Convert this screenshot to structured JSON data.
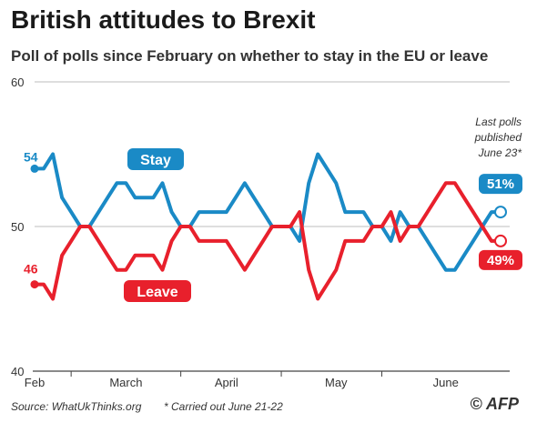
{
  "header": {
    "title": "British attitudes to Brexit",
    "subtitle": "Poll of polls since February on whether to stay in the EU or leave"
  },
  "footer": {
    "source": "Source: WhatUkThinks.org",
    "note": "* Carried out June 21-22",
    "credit": "© AFP"
  },
  "colors": {
    "stay": "#1a8ac6",
    "leave": "#e8202c",
    "grid": "#bdbdbd",
    "axis": "#444444"
  },
  "chart_data": {
    "type": "line",
    "title": "British attitudes to Brexit",
    "subtitle": "Poll of polls since February on whether to stay in the EU or leave",
    "x": [
      0,
      1,
      2,
      3,
      4,
      5,
      6,
      7,
      8,
      9,
      10,
      11,
      12,
      13,
      14,
      15,
      16,
      17,
      18,
      19,
      20,
      21,
      22,
      23,
      24,
      25,
      26,
      27,
      28,
      29,
      30,
      31,
      32,
      33,
      34,
      35,
      36,
      37,
      38,
      39,
      40,
      41,
      42,
      43,
      44,
      45,
      46,
      47,
      48,
      49,
      50,
      51
    ],
    "x_ticks": [
      {
        "pos": 0,
        "label": "Feb"
      },
      {
        "pos": 10,
        "label": "March"
      },
      {
        "pos": 21,
        "label": "April"
      },
      {
        "pos": 33,
        "label": "May"
      },
      {
        "pos": 45,
        "label": "June"
      }
    ],
    "x_dividers": [
      4,
      16,
      27,
      38
    ],
    "ylim": [
      40,
      60
    ],
    "y_ticks": [
      40,
      50,
      60
    ],
    "series": [
      {
        "name": "Stay",
        "key": "stay",
        "values": [
          54,
          54,
          55,
          52,
          51,
          50,
          50,
          51,
          52,
          53,
          53,
          52,
          52,
          52,
          53,
          51,
          50,
          50,
          51,
          51,
          51,
          51,
          52,
          53,
          52,
          51,
          50,
          50,
          50,
          49,
          53,
          55,
          54,
          53,
          51,
          51,
          51,
          50,
          50,
          49,
          51,
          50,
          50,
          49,
          48,
          47,
          47,
          48,
          49,
          50,
          51,
          51
        ],
        "start_label": "54",
        "end_label": "51%"
      },
      {
        "name": "Leave",
        "key": "leave",
        "values": [
          46,
          46,
          45,
          48,
          49,
          50,
          50,
          49,
          48,
          47,
          47,
          48,
          48,
          48,
          47,
          49,
          50,
          50,
          49,
          49,
          49,
          49,
          48,
          47,
          48,
          49,
          50,
          50,
          50,
          51,
          47,
          45,
          46,
          47,
          49,
          49,
          49,
          50,
          50,
          51,
          49,
          50,
          50,
          51,
          52,
          53,
          53,
          52,
          51,
          50,
          49,
          49
        ],
        "start_label": "46",
        "end_label": "49%"
      }
    ],
    "series_labels": [
      "Stay",
      "Leave"
    ],
    "annotation": [
      "Last polls",
      "published",
      "June 23*"
    ]
  }
}
